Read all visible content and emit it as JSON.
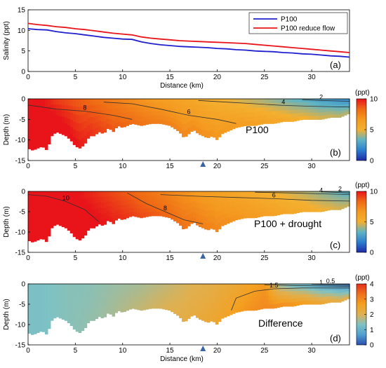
{
  "colors": {
    "p100": "#1f1fd0",
    "reduce_flow": "#e8141a",
    "contour": "#303030",
    "marker": "#3a64a8",
    "colormap": [
      "#1e2aa6",
      "#2a7fd0",
      "#5fb4c4",
      "#f4b030",
      "#f49a20",
      "#ef6a14",
      "#e8141a"
    ],
    "diff_colormap": [
      "#2a4fb0",
      "#4fa0d0",
      "#7ec2c4",
      "#e0b050",
      "#f4a020",
      "#ef7020",
      "#e43018"
    ]
  },
  "marker_icon": "triangle-up-icon",
  "station_km": 18.5,
  "chart_data": [
    {
      "type": "line",
      "panel": "(a)",
      "xlabel": "Distance (km)",
      "ylabel": "Salinity (ppt)",
      "xlim": [
        0,
        34
      ],
      "ylim": [
        0,
        15
      ],
      "xticks": [
        "0",
        "5",
        "10",
        "15",
        "20",
        "25",
        "30"
      ],
      "yticks": [
        "0",
        "5",
        "10",
        "15"
      ],
      "legend_position": "top-right",
      "x": [
        0,
        1,
        2,
        3,
        4,
        5,
        6,
        7,
        8,
        9,
        10,
        11,
        12,
        13,
        14,
        15,
        16,
        17,
        18,
        19,
        20,
        21,
        22,
        23,
        24,
        25,
        26,
        27,
        28,
        29,
        30,
        31,
        32,
        33,
        34
      ],
      "series": [
        {
          "name": "P100",
          "values": [
            10.4,
            10.2,
            10.1,
            9.7,
            9.4,
            9.2,
            8.9,
            8.6,
            8.3,
            8.1,
            7.9,
            7.8,
            7.2,
            6.8,
            6.5,
            6.3,
            6.1,
            6.0,
            5.9,
            5.8,
            5.6,
            5.5,
            5.3,
            5.2,
            5.0,
            4.9,
            4.8,
            4.6,
            4.5,
            4.3,
            4.2,
            4.0,
            3.8,
            3.7,
            3.5
          ]
        },
        {
          "name": "P100 reduce flow",
          "values": [
            11.7,
            11.4,
            11.2,
            10.9,
            10.7,
            10.4,
            10.2,
            9.9,
            9.6,
            9.3,
            9.1,
            8.9,
            8.4,
            8.1,
            7.9,
            7.7,
            7.5,
            7.4,
            7.3,
            7.2,
            7.1,
            7.0,
            6.9,
            6.8,
            6.6,
            6.4,
            6.2,
            6.0,
            5.8,
            5.6,
            5.4,
            5.2,
            5.0,
            4.8,
            4.6
          ]
        }
      ]
    },
    {
      "type": "heatmap",
      "panel": "(b)",
      "label": "P100",
      "xlabel": "",
      "ylabel": "Depth (m)",
      "xlim": [
        0,
        34
      ],
      "ylim": [
        -15,
        0
      ],
      "xticks": [
        "0",
        "5",
        "10",
        "15",
        "20",
        "25",
        "30"
      ],
      "yticks": [
        "0",
        "-5",
        "-10",
        "-15"
      ],
      "colorbar": {
        "unit": "(ppt)",
        "range": [
          0,
          10
        ],
        "ticks": [
          "0",
          "5",
          "10"
        ]
      },
      "surface_salinity": [
        10.5,
        10,
        9.2,
        8.8,
        8.4,
        8.1,
        7.7,
        7.3,
        6.9,
        6.5,
        6.2,
        5.9,
        5.6,
        5.2,
        4.9,
        4.6,
        4.3,
        4.0,
        3.6,
        3.3,
        3.0,
        2.6,
        2.3,
        2.0
      ],
      "bottom_salinity": [
        12,
        11.5,
        10.8,
        10.3,
        9.8,
        9.3,
        8.8,
        8.4,
        8.1,
        7.8,
        7.6,
        7.4,
        7.2,
        7.0,
        6.8,
        6.6,
        6.4,
        6.1,
        5.8,
        5.4,
        5.1,
        4.8,
        4.6,
        4.4
      ],
      "contours": [
        {
          "label": "8",
          "x": [
            0,
            3,
            6,
            9,
            11
          ],
          "z": [
            -1.5,
            -2.5,
            -3,
            -4,
            -5
          ]
        },
        {
          "label": "6",
          "x": [
            8,
            11,
            14,
            17,
            20,
            22
          ],
          "z": [
            -0.8,
            -1.2,
            -2.5,
            -4,
            -5,
            -6
          ]
        },
        {
          "label": "4",
          "x": [
            18,
            21,
            24,
            27,
            30,
            34
          ],
          "z": [
            -0.4,
            -0.8,
            -1.2,
            -1.6,
            -1.8,
            -2
          ]
        },
        {
          "label": "2",
          "x": [
            29,
            31,
            34
          ],
          "z": [
            -0.2,
            -0.4,
            -0.6
          ]
        }
      ]
    },
    {
      "type": "heatmap",
      "panel": "(c)",
      "label": "P100 + drought",
      "xlabel": "",
      "ylabel": "Depth (m)",
      "xlim": [
        0,
        34
      ],
      "ylim": [
        -15,
        0
      ],
      "xticks": [
        "0",
        "5",
        "10",
        "15",
        "20",
        "25",
        "30"
      ],
      "yticks": [
        "0",
        "-5",
        "-10",
        "-15"
      ],
      "colorbar": {
        "unit": "(ppt)",
        "range": [
          0,
          10
        ],
        "ticks": [
          "0",
          "5",
          "10"
        ]
      },
      "surface_salinity": [
        11.5,
        11,
        10.6,
        10.2,
        9.8,
        9.4,
        9.0,
        8.6,
        8.2,
        7.8,
        7.4,
        7.0,
        6.6,
        6.3,
        6.0,
        5.7,
        5.4,
        5.1,
        4.8,
        4.5,
        4.2,
        3.8,
        3.4,
        3.0
      ],
      "bottom_salinity": [
        12.5,
        12,
        11.6,
        11.1,
        10.6,
        10.2,
        9.8,
        9.4,
        9.0,
        8.7,
        8.4,
        8.1,
        7.8,
        7.5,
        7.2,
        6.9,
        6.6,
        6.3,
        6.0,
        5.7,
        5.4,
        5.1,
        4.8,
        4.5
      ],
      "contours": [
        {
          "label": "10",
          "x": [
            0,
            2,
            4,
            6,
            7.5
          ],
          "z": [
            -0.8,
            -1.2,
            -2.5,
            -4.5,
            -7.5
          ]
        },
        {
          "label": "8",
          "x": [
            10.5,
            12.5,
            14.5,
            16.5,
            18.5
          ],
          "z": [
            -0.4,
            -3,
            -5,
            -7,
            -8
          ]
        },
        {
          "label": "6",
          "x": [
            14,
            18,
            22,
            26,
            30,
            34
          ],
          "z": [
            -0.8,
            -1.2,
            -1.5,
            -1.8,
            -2.2,
            -2.4
          ]
        },
        {
          "label": "4",
          "x": [
            24,
            28,
            31,
            34
          ],
          "z": [
            -0.2,
            -0.4,
            -0.6,
            -0.8
          ]
        },
        {
          "label": "2",
          "x": [
            31,
            33,
            34
          ],
          "z": [
            -0.1,
            -0.3,
            -0.4
          ]
        }
      ]
    },
    {
      "type": "heatmap",
      "panel": "(d)",
      "label": "Difference",
      "xlabel": "Distance (km)",
      "ylabel": "Depth (m)",
      "xlim": [
        0,
        34
      ],
      "ylim": [
        -15,
        0
      ],
      "xticks": [
        "0",
        "5",
        "10",
        "15",
        "20",
        "25",
        "30"
      ],
      "yticks": [
        "0",
        "-5",
        "-10",
        "-15"
      ],
      "colorbar": {
        "unit": "(ppt)",
        "range": [
          0,
          4
        ],
        "ticks": [
          "0",
          "1",
          "2",
          "3",
          "4"
        ]
      },
      "surface_salinity": [
        1.3,
        1.3,
        1.35,
        1.4,
        1.4,
        1.45,
        1.5,
        1.55,
        1.6,
        1.7,
        1.8,
        1.9,
        2.0,
        2.1,
        2.25,
        2.4,
        2.6,
        2.8,
        1.5,
        1.2,
        1.0,
        0.7,
        0.5,
        0.3
      ],
      "bottom_salinity": [
        1.3,
        1.3,
        1.35,
        1.4,
        1.45,
        1.5,
        1.6,
        1.7,
        1.8,
        1.9,
        2.0,
        2.1,
        2.25,
        2.4,
        2.55,
        2.7,
        2.9,
        3.0,
        3.0,
        2.9,
        2.7,
        2.5,
        2.3,
        2.1
      ],
      "contours": [
        {
          "label": "1.5",
          "x": [
            21.5,
            22,
            24,
            26,
            29,
            34
          ],
          "z": [
            -6.5,
            -3.5,
            -1.8,
            -1.2,
            -1.0,
            -1.0
          ]
        },
        {
          "label": "1",
          "x": [
            25,
            28,
            31,
            34
          ],
          "z": [
            -0.2,
            -0.4,
            -0.5,
            -0.6
          ]
        },
        {
          "label": "0.5",
          "x": [
            30,
            32,
            34
          ],
          "z": [
            -0.1,
            -0.2,
            -0.3
          ]
        }
      ]
    }
  ],
  "bathymetry": {
    "x": [
      0,
      0.5,
      1,
      1.5,
      2,
      2.5,
      3,
      3.5,
      4,
      4.5,
      5,
      5.5,
      6,
      6.5,
      7,
      7.5,
      8,
      8.5,
      9,
      9.5,
      10,
      10.5,
      11,
      12,
      13,
      14,
      15,
      16,
      16.5,
      17,
      17.5,
      18,
      18.5,
      19,
      19.5,
      20,
      20.5,
      21,
      22,
      23,
      24,
      25,
      26,
      27,
      28,
      29,
      30,
      31,
      32,
      33,
      34
    ],
    "z": [
      -12,
      -12.5,
      -12,
      -11.5,
      -12.5,
      -9,
      -8,
      -8.5,
      -9,
      -10,
      -11.5,
      -12,
      -11,
      -9,
      -9,
      -8,
      -8.5,
      -7,
      -8,
      -6.5,
      -7,
      -6.5,
      -6,
      -6.5,
      -6,
      -6,
      -6.5,
      -8,
      -9.5,
      -8.5,
      -7.5,
      -8.5,
      -9,
      -9.5,
      -9,
      -10,
      -8.5,
      -8,
      -7,
      -6.5,
      -6.5,
      -6,
      -6,
      -5.5,
      -5.5,
      -5,
      -5,
      -5,
      -4.5,
      -4.5,
      -3.5
    ]
  }
}
